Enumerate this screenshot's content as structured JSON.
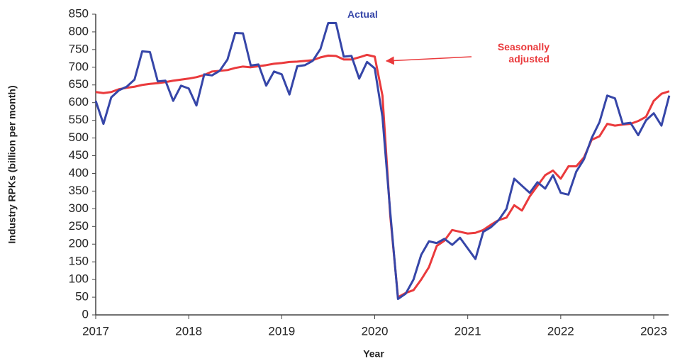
{
  "chart_data": {
    "type": "line",
    "x_label": "Year",
    "y_label": "Industry RPKs (billion per month)",
    "x": [
      2017,
      2017.083,
      2017.167,
      2017.25,
      2017.333,
      2017.417,
      2017.5,
      2017.583,
      2017.667,
      2017.75,
      2017.833,
      2017.917,
      2018,
      2018.083,
      2018.167,
      2018.25,
      2018.333,
      2018.417,
      2018.5,
      2018.583,
      2018.667,
      2018.75,
      2018.833,
      2018.917,
      2019,
      2019.083,
      2019.167,
      2019.25,
      2019.333,
      2019.417,
      2019.5,
      2019.583,
      2019.667,
      2019.75,
      2019.833,
      2019.917,
      2020,
      2020.083,
      2020.167,
      2020.25,
      2020.333,
      2020.417,
      2020.5,
      2020.583,
      2020.667,
      2020.75,
      2020.833,
      2020.917,
      2021,
      2021.083,
      2021.167,
      2021.25,
      2021.333,
      2021.417,
      2021.5,
      2021.583,
      2021.667,
      2021.75,
      2021.833,
      2021.917,
      2022,
      2022.083,
      2022.167,
      2022.25,
      2022.333,
      2022.417,
      2022.5,
      2022.583,
      2022.667,
      2022.75,
      2022.833,
      2022.917,
      2023,
      2023.083,
      2023.167
    ],
    "series": [
      {
        "name": "Actual",
        "color": "#3646a8",
        "values": [
          605,
          540,
          615,
          635,
          645,
          665,
          745,
          743,
          660,
          662,
          605,
          648,
          640,
          592,
          680,
          677,
          690,
          722,
          797,
          796,
          705,
          708,
          648,
          688,
          680,
          623,
          703,
          706,
          718,
          752,
          825,
          825,
          730,
          732,
          668,
          715,
          697,
          560,
          290,
          45,
          60,
          100,
          170,
          208,
          203,
          215,
          198,
          218,
          188,
          158,
          235,
          248,
          268,
          300,
          385,
          365,
          345,
          375,
          357,
          395,
          345,
          340,
          405,
          440,
          500,
          545,
          620,
          612,
          540,
          543,
          508,
          550,
          570,
          535,
          620
        ]
      },
      {
        "name": "Seasonally adjusted",
        "color": "#ea3a3c",
        "values": [
          630,
          627,
          630,
          638,
          642,
          645,
          650,
          653,
          655,
          658,
          662,
          665,
          668,
          672,
          678,
          688,
          690,
          692,
          698,
          702,
          700,
          703,
          706,
          710,
          712,
          715,
          716,
          718,
          720,
          728,
          733,
          732,
          722,
          722,
          728,
          735,
          730,
          620,
          280,
          50,
          62,
          70,
          100,
          135,
          195,
          210,
          240,
          235,
          230,
          232,
          240,
          255,
          268,
          275,
          310,
          295,
          335,
          365,
          395,
          408,
          385,
          420,
          420,
          445,
          495,
          505,
          540,
          535,
          538,
          540,
          548,
          560,
          605,
          625,
          632
        ]
      }
    ],
    "xlim": [
      2017,
      2023.16
    ],
    "xticks": [
      2017,
      2018,
      2019,
      2020,
      2021,
      2022,
      2023
    ],
    "ylim": [
      0,
      850
    ],
    "yticks": [
      0,
      50,
      100,
      150,
      200,
      250,
      300,
      350,
      400,
      450,
      500,
      550,
      600,
      650,
      700,
      750,
      800,
      850
    ],
    "grid": false
  }
}
